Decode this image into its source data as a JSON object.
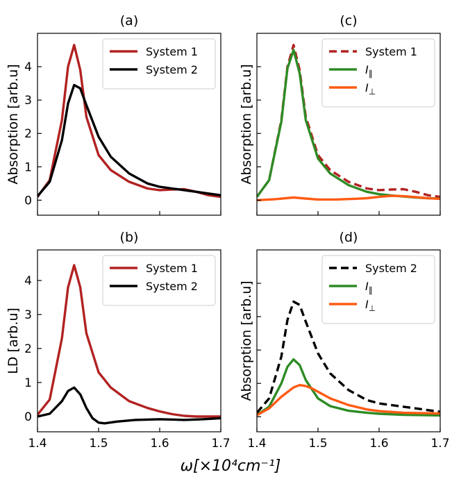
{
  "figure": {
    "xlabel": "ω[×10⁴cm⁻¹]"
  },
  "colors": {
    "system1": "#b22222",
    "system2": "#000000",
    "parallel": "#2e8b25",
    "perp": "#ff5a14"
  },
  "chart_data": [
    {
      "type": "line",
      "title": "(a)",
      "xlabel": "",
      "ylabel": "Absorption [arb.u]",
      "xlim": [
        1.4,
        1.7
      ],
      "ylim": [
        -0.45,
        5.0
      ],
      "yticks": [
        0,
        1,
        2,
        3,
        4
      ],
      "xticks": [
        1.4,
        1.5,
        1.6,
        1.7
      ],
      "show_x_ticklabels": false,
      "show_y_ticklabels": true,
      "legend_position": "top-right",
      "series": [
        {
          "name": "System 1",
          "color": "#b22222",
          "dash": "solid",
          "x": [
            1.4,
            1.42,
            1.44,
            1.45,
            1.46,
            1.47,
            1.48,
            1.5,
            1.52,
            1.55,
            1.58,
            1.6,
            1.62,
            1.64,
            1.66,
            1.68,
            1.7
          ],
          "y": [
            0.1,
            0.6,
            2.4,
            4.0,
            4.65,
            3.9,
            2.5,
            1.35,
            0.9,
            0.55,
            0.35,
            0.3,
            0.32,
            0.33,
            0.25,
            0.15,
            0.1
          ]
        },
        {
          "name": "System 2",
          "color": "#000000",
          "dash": "solid",
          "x": [
            1.4,
            1.42,
            1.44,
            1.45,
            1.46,
            1.47,
            1.48,
            1.5,
            1.52,
            1.55,
            1.58,
            1.6,
            1.62,
            1.64,
            1.66,
            1.68,
            1.7
          ],
          "y": [
            0.12,
            0.55,
            1.8,
            2.9,
            3.45,
            3.35,
            2.85,
            1.9,
            1.3,
            0.8,
            0.5,
            0.4,
            0.35,
            0.3,
            0.25,
            0.2,
            0.15
          ]
        }
      ]
    },
    {
      "type": "line",
      "title": "(c)",
      "xlabel": "",
      "ylabel": "Absorption [arb.u]",
      "xlim": [
        1.4,
        1.7
      ],
      "ylim": [
        -0.45,
        5.0
      ],
      "yticks": [
        0,
        1,
        2,
        3,
        4
      ],
      "xticks": [
        1.4,
        1.5,
        1.6,
        1.7
      ],
      "show_x_ticklabels": false,
      "show_y_ticklabels": false,
      "legend_position": "top-right",
      "series": [
        {
          "name": "System 1",
          "color": "#b22222",
          "dash": "dashed",
          "x": [
            1.4,
            1.42,
            1.44,
            1.45,
            1.46,
            1.47,
            1.48,
            1.5,
            1.52,
            1.55,
            1.58,
            1.6,
            1.62,
            1.64,
            1.66,
            1.68,
            1.7
          ],
          "y": [
            0.1,
            0.6,
            2.4,
            4.0,
            4.65,
            3.9,
            2.5,
            1.35,
            0.9,
            0.55,
            0.35,
            0.3,
            0.32,
            0.33,
            0.25,
            0.15,
            0.1
          ]
        },
        {
          "name": "I∥",
          "color": "#2e8b25",
          "dash": "solid",
          "x": [
            1.4,
            1.42,
            1.44,
            1.45,
            1.46,
            1.47,
            1.48,
            1.5,
            1.52,
            1.55,
            1.58,
            1.6,
            1.62,
            1.64,
            1.66,
            1.68,
            1.7
          ],
          "y": [
            0.1,
            0.6,
            2.35,
            3.95,
            4.5,
            3.8,
            2.4,
            1.25,
            0.8,
            0.45,
            0.25,
            0.18,
            0.14,
            0.11,
            0.08,
            0.06,
            0.05
          ]
        },
        {
          "name": "I⊥",
          "color": "#ff5a14",
          "dash": "solid",
          "x": [
            1.4,
            1.43,
            1.46,
            1.48,
            1.5,
            1.53,
            1.56,
            1.58,
            1.6,
            1.62,
            1.64,
            1.66,
            1.68,
            1.7
          ],
          "y": [
            0.0,
            0.03,
            0.08,
            0.05,
            0.02,
            0.02,
            0.04,
            0.06,
            0.1,
            0.13,
            0.12,
            0.09,
            0.06,
            0.04
          ]
        }
      ]
    },
    {
      "type": "line",
      "title": "(b)",
      "xlabel": "",
      "ylabel": "LD [arb.u]",
      "xlim": [
        1.4,
        1.7
      ],
      "ylim": [
        -0.45,
        4.9
      ],
      "yticks": [
        0,
        1,
        2,
        3,
        4
      ],
      "xticks": [
        1.4,
        1.5,
        1.6,
        1.7
      ],
      "show_x_ticklabels": true,
      "show_y_ticklabels": true,
      "legend_position": "top-right",
      "series": [
        {
          "name": "System 1",
          "color": "#b22222",
          "dash": "solid",
          "x": [
            1.4,
            1.42,
            1.44,
            1.45,
            1.46,
            1.47,
            1.48,
            1.5,
            1.52,
            1.55,
            1.58,
            1.6,
            1.62,
            1.64,
            1.66,
            1.68,
            1.7
          ],
          "y": [
            0.05,
            0.5,
            2.3,
            3.8,
            4.45,
            3.8,
            2.45,
            1.3,
            0.85,
            0.45,
            0.25,
            0.15,
            0.07,
            0.02,
            0.0,
            0.0,
            0.0
          ]
        },
        {
          "name": "System 2",
          "color": "#000000",
          "dash": "solid",
          "x": [
            1.4,
            1.42,
            1.44,
            1.45,
            1.46,
            1.47,
            1.48,
            1.49,
            1.5,
            1.51,
            1.53,
            1.56,
            1.6,
            1.64,
            1.67,
            1.7
          ],
          "y": [
            0.0,
            0.08,
            0.45,
            0.75,
            0.85,
            0.65,
            0.25,
            -0.05,
            -0.18,
            -0.2,
            -0.15,
            -0.1,
            -0.08,
            -0.1,
            -0.08,
            -0.05
          ]
        }
      ]
    },
    {
      "type": "line",
      "title": "(d)",
      "xlabel": "",
      "ylabel": "Absorption [arb.u]",
      "xlim": [
        1.4,
        1.7
      ],
      "ylim": [
        -0.45,
        5.0
      ],
      "yticks": [
        0,
        1,
        2,
        3,
        4
      ],
      "xticks": [
        1.4,
        1.5,
        1.6,
        1.7
      ],
      "show_x_ticklabels": true,
      "show_y_ticklabels": false,
      "legend_position": "top-right",
      "series": [
        {
          "name": "System 2",
          "color": "#000000",
          "dash": "dashed",
          "x": [
            1.4,
            1.42,
            1.44,
            1.45,
            1.46,
            1.47,
            1.48,
            1.5,
            1.52,
            1.55,
            1.58,
            1.6,
            1.62,
            1.64,
            1.66,
            1.68,
            1.7
          ],
          "y": [
            0.12,
            0.55,
            1.8,
            2.9,
            3.45,
            3.35,
            2.85,
            1.9,
            1.3,
            0.8,
            0.5,
            0.4,
            0.35,
            0.3,
            0.25,
            0.2,
            0.15
          ]
        },
        {
          "name": "I∥",
          "color": "#2e8b25",
          "dash": "solid",
          "x": [
            1.4,
            1.42,
            1.44,
            1.45,
            1.46,
            1.47,
            1.48,
            1.5,
            1.52,
            1.55,
            1.58,
            1.6,
            1.64,
            1.7
          ],
          "y": [
            0.05,
            0.3,
            1.0,
            1.5,
            1.72,
            1.55,
            1.1,
            0.55,
            0.32,
            0.18,
            0.12,
            0.09,
            0.06,
            0.04
          ]
        },
        {
          "name": "I⊥",
          "color": "#ff5a14",
          "dash": "solid",
          "x": [
            1.4,
            1.42,
            1.44,
            1.46,
            1.47,
            1.48,
            1.49,
            1.5,
            1.52,
            1.55,
            1.58,
            1.6,
            1.64,
            1.7
          ],
          "y": [
            0.05,
            0.25,
            0.6,
            0.88,
            0.95,
            0.92,
            0.85,
            0.75,
            0.55,
            0.35,
            0.22,
            0.17,
            0.12,
            0.1
          ]
        }
      ]
    }
  ]
}
